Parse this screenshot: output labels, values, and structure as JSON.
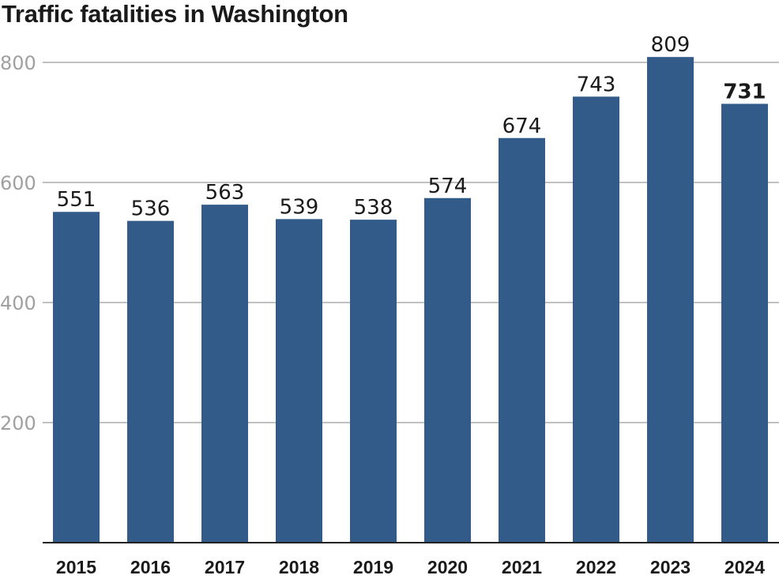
{
  "chart_data": {
    "type": "bar",
    "title": "Traffic fatalities in Washington",
    "xlabel": "",
    "ylabel": "",
    "categories": [
      "2015",
      "2016",
      "2017",
      "2018",
      "2019",
      "2020",
      "2021",
      "2022",
      "2023",
      "2024"
    ],
    "values": [
      551,
      536,
      563,
      539,
      538,
      574,
      674,
      743,
      809,
      731
    ],
    "data_labels": [
      "551",
      "536",
      "563",
      "539",
      "538",
      "574",
      "674",
      "743",
      "809",
      "731"
    ],
    "highlight_index": 9,
    "ylim": [
      0,
      800
    ],
    "yticks": [
      200,
      400,
      600,
      800
    ],
    "ytick_labels": [
      "200",
      "400",
      "600",
      "800"
    ],
    "grid": true,
    "legend": "none",
    "colors": {
      "bar": "#325b8a",
      "grid": "#9a9a9a",
      "axis": "#222222",
      "ytick_text": "#a0a0a0",
      "text": "#1a1a1a"
    }
  }
}
